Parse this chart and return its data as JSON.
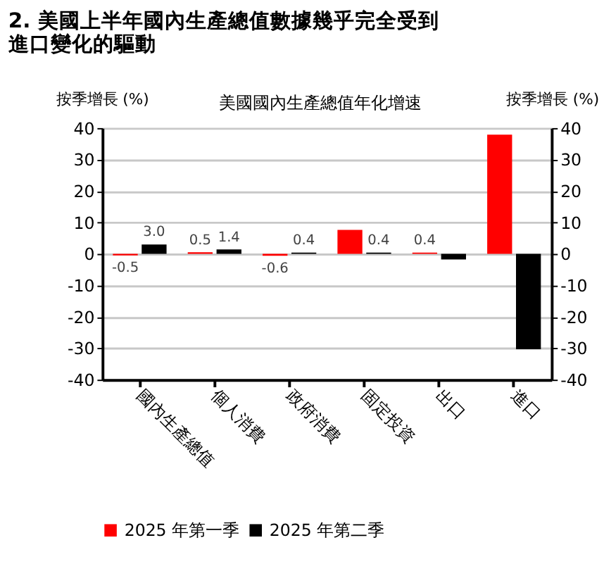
{
  "chart_data": {
    "type": "bar",
    "title": "2. 美國上半年國內生產總值數據幾乎完全受到進口變化的驅動",
    "subtitle": "美國國內生產總值年化增速",
    "ylabel": "按季增長 (%)",
    "y2label": "按季增長 (%)",
    "categories": [
      "國內生產總值",
      "個人消費",
      "政府消費",
      "固定投資",
      "出口",
      "進口"
    ],
    "series": [
      {
        "name": "2025 年第一季",
        "color": "#ff0000",
        "values": [
          -0.5,
          0.5,
          -0.6,
          7.6,
          0.4,
          37.9
        ],
        "value_labels": [
          "-0.5",
          "0.5",
          "-0.6",
          null,
          "0.4",
          null
        ]
      },
      {
        "name": "2025 年第二季",
        "color": "#000000",
        "values": [
          3.0,
          1.4,
          0.4,
          0.4,
          -1.8,
          -30.3
        ],
        "value_labels": [
          "3.0",
          "1.4",
          "0.4",
          "0.4",
          null,
          null
        ]
      }
    ],
    "ylim": [
      -40,
      40
    ],
    "yticks": [
      -40,
      -30,
      -20,
      -10,
      0,
      10,
      20,
      30,
      40
    ],
    "y2lim": [
      -40,
      40
    ],
    "y2ticks": [
      -40,
      -30,
      -20,
      -10,
      0,
      10,
      20,
      30,
      40
    ],
    "grid": "y",
    "legend": "bottom"
  }
}
